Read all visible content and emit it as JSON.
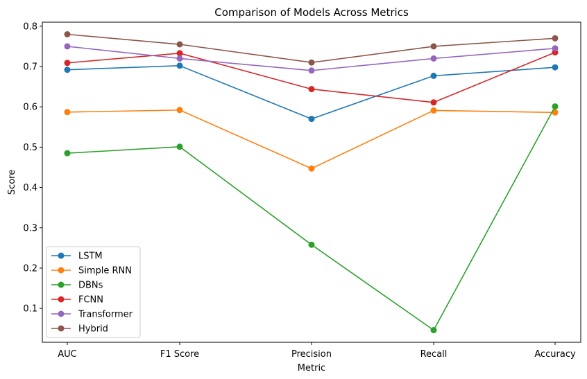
{
  "chart_data": {
    "type": "line",
    "title": "Comparison of Models Across Metrics",
    "xlabel": "Metric",
    "ylabel": "Score",
    "categories": [
      "AUC",
      "F1 Score",
      "Precision",
      "Recall",
      "Accuracy"
    ],
    "ylim": [
      0.016,
      0.81
    ],
    "yticks": [
      "0.1",
      "0.2",
      "0.3",
      "0.4",
      "0.5",
      "0.6",
      "0.7",
      "0.8"
    ],
    "grid": false,
    "legend_position": "lower-left",
    "markers": "circle",
    "series": [
      {
        "name": "LSTM",
        "color": "#1f77b4",
        "values": [
          0.692,
          0.702,
          0.57,
          0.677,
          0.698
        ]
      },
      {
        "name": "Simple RNN",
        "color": "#ff7f0e",
        "values": [
          0.587,
          0.592,
          0.447,
          0.591,
          0.586
        ]
      },
      {
        "name": "DBNs",
        "color": "#2ca02c",
        "values": [
          0.485,
          0.501,
          0.258,
          0.046,
          0.601
        ]
      },
      {
        "name": "FCNN",
        "color": "#d62728",
        "values": [
          0.709,
          0.733,
          0.644,
          0.611,
          0.735
        ]
      },
      {
        "name": "Transformer",
        "color": "#9467bd",
        "values": [
          0.75,
          0.72,
          0.69,
          0.72,
          0.745
        ]
      },
      {
        "name": "Hybrid",
        "color": "#8c564b",
        "values": [
          0.78,
          0.755,
          0.71,
          0.75,
          0.77
        ]
      }
    ]
  }
}
